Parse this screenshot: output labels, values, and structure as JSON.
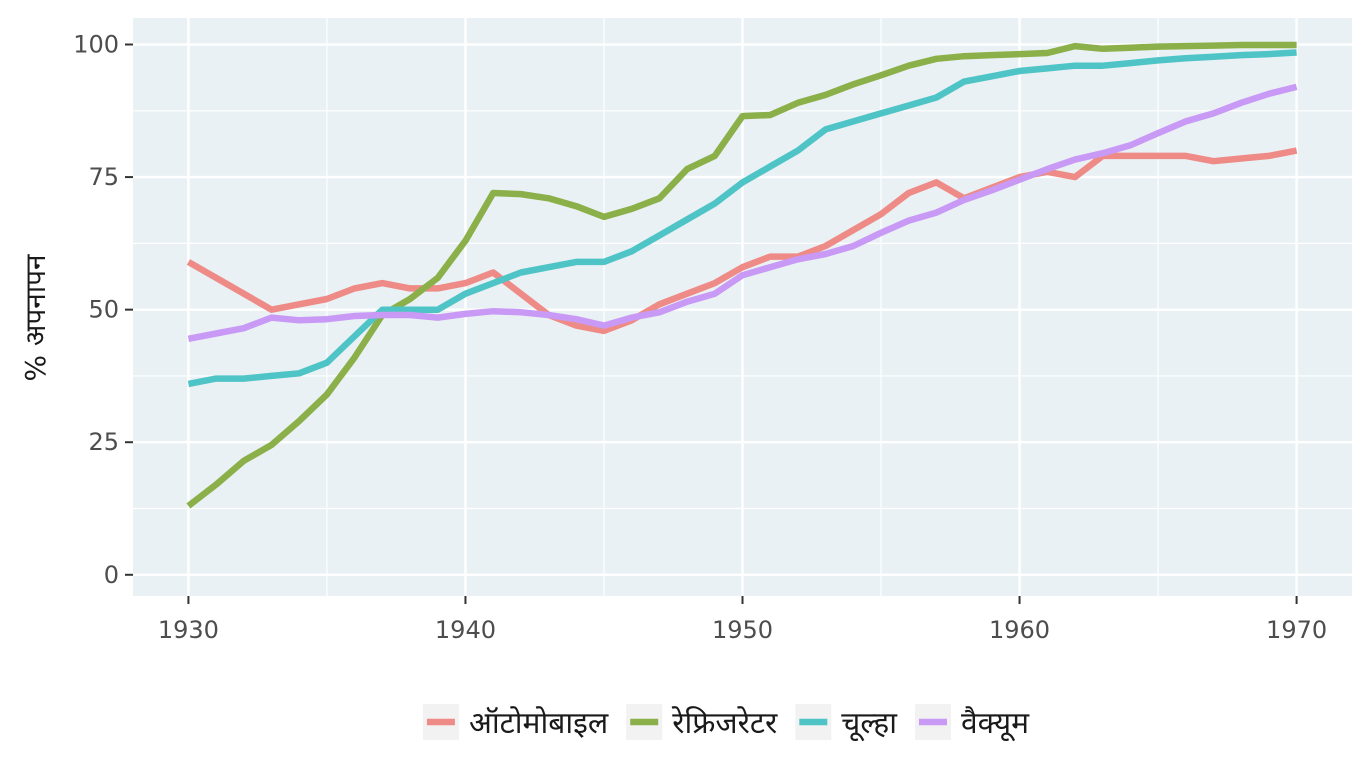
{
  "chart_data": {
    "type": "line",
    "title": "",
    "xlabel": "",
    "ylabel": "% अपनापन",
    "xlim": [
      1928,
      1972
    ],
    "ylim": [
      -4,
      105
    ],
    "x_ticks": [
      1930,
      1940,
      1950,
      1960,
      1970
    ],
    "y_ticks": [
      0,
      25,
      50,
      75,
      100
    ],
    "grid": true,
    "legend_position": "bottom",
    "series": [
      {
        "name": "ऑटोमोबाइल",
        "color": "#ee8b86",
        "points": [
          [
            1930,
            59
          ],
          [
            1931,
            56
          ],
          [
            1932,
            53
          ],
          [
            1933,
            50
          ],
          [
            1934,
            51
          ],
          [
            1935,
            52
          ],
          [
            1936,
            54
          ],
          [
            1937,
            55
          ],
          [
            1938,
            54
          ],
          [
            1939,
            54
          ],
          [
            1940,
            55
          ],
          [
            1941,
            57
          ],
          [
            1942,
            53
          ],
          [
            1943,
            49
          ],
          [
            1944,
            47
          ],
          [
            1945,
            46
          ],
          [
            1946,
            48
          ],
          [
            1947,
            51
          ],
          [
            1948,
            53
          ],
          [
            1949,
            55
          ],
          [
            1950,
            58
          ],
          [
            1951,
            60
          ],
          [
            1952,
            60
          ],
          [
            1953,
            62
          ],
          [
            1954,
            65
          ],
          [
            1955,
            68
          ],
          [
            1956,
            72
          ],
          [
            1957,
            74
          ],
          [
            1958,
            71
          ],
          [
            1959,
            73
          ],
          [
            1960,
            75
          ],
          [
            1961,
            76
          ],
          [
            1962,
            75
          ],
          [
            1963,
            79
          ],
          [
            1964,
            79
          ],
          [
            1965,
            79
          ],
          [
            1966,
            79
          ],
          [
            1967,
            78
          ],
          [
            1968,
            78.5
          ],
          [
            1969,
            79
          ],
          [
            1970,
            80
          ]
        ]
      },
      {
        "name": "रेफ्रिजरेटर",
        "color": "#8bb04a",
        "points": [
          [
            1930,
            13
          ],
          [
            1931,
            17
          ],
          [
            1932,
            21.5
          ],
          [
            1933,
            24.5
          ],
          [
            1934,
            29
          ],
          [
            1935,
            34
          ],
          [
            1936,
            41
          ],
          [
            1937,
            49
          ],
          [
            1938,
            52
          ],
          [
            1939,
            56
          ],
          [
            1940,
            63
          ],
          [
            1941,
            72
          ],
          [
            1942,
            71.8
          ],
          [
            1943,
            71
          ],
          [
            1944,
            69.5
          ],
          [
            1945,
            67.5
          ],
          [
            1946,
            69
          ],
          [
            1947,
            71
          ],
          [
            1948,
            76.5
          ],
          [
            1949,
            79
          ],
          [
            1950,
            86.5
          ],
          [
            1951,
            86.7
          ],
          [
            1952,
            89
          ],
          [
            1953,
            90.5
          ],
          [
            1954,
            92.5
          ],
          [
            1955,
            94.2
          ],
          [
            1956,
            96
          ],
          [
            1957,
            97.3
          ],
          [
            1958,
            97.8
          ],
          [
            1959,
            98
          ],
          [
            1960,
            98.2
          ],
          [
            1961,
            98.4
          ],
          [
            1962,
            99.7
          ],
          [
            1963,
            99.2
          ],
          [
            1964,
            99.4
          ],
          [
            1965,
            99.6
          ],
          [
            1966,
            99.7
          ],
          [
            1967,
            99.8
          ],
          [
            1968,
            99.9
          ],
          [
            1969,
            99.9
          ],
          [
            1970,
            99.9
          ]
        ]
      },
      {
        "name": "चूल्हा",
        "color": "#4fc4c6",
        "points": [
          [
            1930,
            36
          ],
          [
            1931,
            37
          ],
          [
            1932,
            37
          ],
          [
            1933,
            37.5
          ],
          [
            1934,
            38
          ],
          [
            1935,
            40
          ],
          [
            1936,
            45
          ],
          [
            1937,
            50
          ],
          [
            1938,
            50
          ],
          [
            1939,
            50
          ],
          [
            1940,
            53
          ],
          [
            1941,
            55
          ],
          [
            1942,
            57
          ],
          [
            1943,
            58
          ],
          [
            1944,
            59
          ],
          [
            1945,
            59
          ],
          [
            1946,
            61
          ],
          [
            1947,
            64
          ],
          [
            1948,
            67
          ],
          [
            1949,
            70
          ],
          [
            1950,
            74
          ],
          [
            1951,
            77
          ],
          [
            1952,
            80
          ],
          [
            1953,
            84
          ],
          [
            1954,
            85.5
          ],
          [
            1955,
            87
          ],
          [
            1956,
            88.5
          ],
          [
            1957,
            90
          ],
          [
            1958,
            93
          ],
          [
            1959,
            94
          ],
          [
            1960,
            95
          ],
          [
            1961,
            95.5
          ],
          [
            1962,
            96
          ],
          [
            1963,
            96
          ],
          [
            1964,
            96.5
          ],
          [
            1965,
            97
          ],
          [
            1966,
            97.4
          ],
          [
            1967,
            97.7
          ],
          [
            1968,
            98
          ],
          [
            1969,
            98.2
          ],
          [
            1970,
            98.5
          ]
        ]
      },
      {
        "name": "वैक्यूम",
        "color": "#c99af5",
        "points": [
          [
            1930,
            44.5
          ],
          [
            1931,
            45.5
          ],
          [
            1932,
            46.5
          ],
          [
            1933,
            48.5
          ],
          [
            1934,
            48
          ],
          [
            1935,
            48.2
          ],
          [
            1936,
            48.8
          ],
          [
            1937,
            49
          ],
          [
            1938,
            49
          ],
          [
            1939,
            48.5
          ],
          [
            1940,
            49.2
          ],
          [
            1941,
            49.7
          ],
          [
            1942,
            49.5
          ],
          [
            1943,
            49
          ],
          [
            1944,
            48.2
          ],
          [
            1945,
            47
          ],
          [
            1946,
            48.5
          ],
          [
            1947,
            49.5
          ],
          [
            1948,
            51.5
          ],
          [
            1949,
            53
          ],
          [
            1950,
            56.5
          ],
          [
            1951,
            58
          ],
          [
            1952,
            59.5
          ],
          [
            1953,
            60.5
          ],
          [
            1954,
            62
          ],
          [
            1955,
            64.5
          ],
          [
            1956,
            66.8
          ],
          [
            1957,
            68.3
          ],
          [
            1958,
            70.7
          ],
          [
            1959,
            72.5
          ],
          [
            1960,
            74.5
          ],
          [
            1961,
            76.5
          ],
          [
            1962,
            78.3
          ],
          [
            1963,
            79.5
          ],
          [
            1964,
            81
          ],
          [
            1965,
            83.3
          ],
          [
            1966,
            85.5
          ],
          [
            1967,
            87
          ],
          [
            1968,
            89
          ],
          [
            1969,
            90.7
          ],
          [
            1970,
            92
          ]
        ]
      }
    ]
  }
}
